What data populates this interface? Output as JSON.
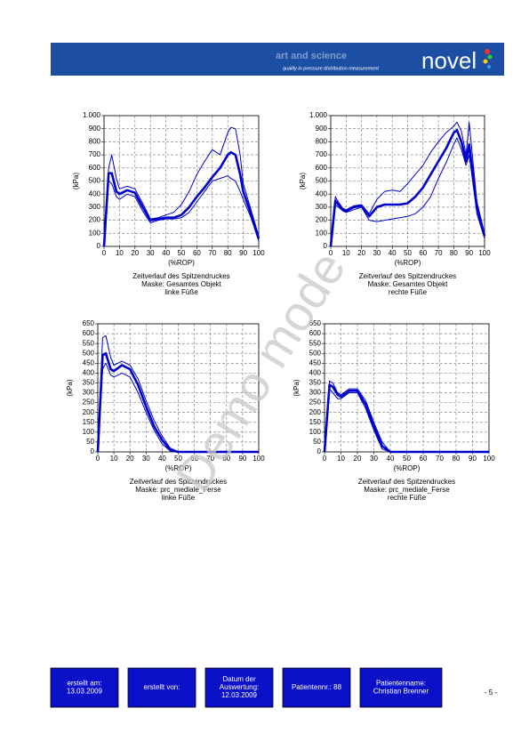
{
  "header": {
    "tagline": "art and science",
    "subtitle": "quality in pressure distribution measurement",
    "brand": "novel"
  },
  "watermark": "Demo mode",
  "chart_data": [
    {
      "type": "line",
      "xlabel": "(%ROP)",
      "ylabel": "(kPa)",
      "caption": [
        "Zeitverlauf des Spitzendruckes",
        "Maske: Gesamtes Objekt",
        "linke Füße"
      ],
      "x": [
        0,
        3,
        5,
        8,
        10,
        15,
        20,
        25,
        30,
        35,
        40,
        45,
        50,
        55,
        60,
        65,
        70,
        75,
        80,
        82,
        85,
        88,
        90,
        95,
        100
      ],
      "xlim": [
        0,
        100
      ],
      "xticks": [
        0,
        10,
        20,
        30,
        40,
        50,
        60,
        70,
        80,
        90,
        100
      ],
      "ylim": [
        0,
        1000
      ],
      "yticks": [
        0,
        100,
        200,
        300,
        400,
        500,
        600,
        700,
        800,
        900,
        {
          "value": 1000,
          "label": "1.000"
        }
      ],
      "grid": true,
      "series": [
        {
          "color": "#0000cc",
          "width": 1,
          "values": [
            0,
            600,
            700,
            520,
            440,
            460,
            440,
            330,
            210,
            220,
            240,
            260,
            320,
            420,
            550,
            650,
            740,
            700,
            870,
            910,
            900,
            700,
            480,
            280,
            80
          ]
        },
        {
          "color": "#0000cc",
          "width": 2.6,
          "values": [
            0,
            560,
            560,
            420,
            400,
            430,
            410,
            300,
            200,
            210,
            220,
            220,
            240,
            300,
            380,
            450,
            530,
            600,
            700,
            720,
            700,
            550,
            420,
            250,
            60
          ]
        },
        {
          "color": "#0000cc",
          "width": 1,
          "values": [
            0,
            500,
            480,
            380,
            360,
            400,
            380,
            270,
            180,
            200,
            210,
            210,
            220,
            260,
            340,
            420,
            500,
            520,
            540,
            520,
            500,
            420,
            360,
            220,
            40
          ]
        }
      ]
    },
    {
      "type": "line",
      "xlabel": "(%ROP)",
      "ylabel": "(kPa)",
      "caption": [
        "Zeitverlauf des Spitzendruckes",
        "Maske: Gesamtes Objekt",
        "rechte Füße"
      ],
      "x": [
        0,
        3,
        5,
        8,
        10,
        15,
        20,
        25,
        30,
        35,
        40,
        45,
        50,
        55,
        60,
        65,
        70,
        75,
        80,
        82,
        85,
        88,
        90,
        95,
        100
      ],
      "xlim": [
        0,
        100
      ],
      "xticks": [
        0,
        10,
        20,
        30,
        40,
        50,
        60,
        70,
        80,
        90,
        100
      ],
      "ylim": [
        0,
        1000
      ],
      "yticks": [
        0,
        100,
        200,
        300,
        400,
        500,
        600,
        700,
        800,
        900,
        {
          "value": 1000,
          "label": "1.000"
        }
      ],
      "grid": true,
      "series": [
        {
          "color": "#0000cc",
          "width": 1,
          "values": [
            0,
            380,
            340,
            290,
            280,
            310,
            320,
            250,
            360,
            420,
            430,
            420,
            480,
            550,
            620,
            720,
            800,
            870,
            920,
            950,
            880,
            700,
            950,
            340,
            100
          ]
        },
        {
          "color": "#0000cc",
          "width": 2.6,
          "values": [
            0,
            350,
            320,
            280,
            270,
            300,
            310,
            230,
            300,
            320,
            320,
            320,
            330,
            380,
            450,
            550,
            650,
            750,
            870,
            890,
            800,
            650,
            780,
            300,
            80
          ]
        },
        {
          "color": "#0000cc",
          "width": 1,
          "values": [
            0,
            320,
            300,
            270,
            260,
            280,
            300,
            200,
            190,
            200,
            210,
            220,
            230,
            250,
            300,
            380,
            520,
            640,
            780,
            830,
            740,
            620,
            700,
            250,
            60
          ]
        }
      ]
    },
    {
      "type": "line",
      "xlabel": "(%ROP)",
      "ylabel": "(kPa)",
      "caption": [
        "Zeitverlauf des Spitzendruckes",
        "Maske: prc_mediale_Ferse",
        "linke Füße"
      ],
      "x": [
        0,
        3,
        5,
        8,
        10,
        15,
        20,
        25,
        30,
        35,
        40,
        45,
        50,
        60,
        70,
        80,
        90,
        100
      ],
      "xlim": [
        0,
        100
      ],
      "xticks": [
        0,
        10,
        20,
        30,
        40,
        50,
        60,
        70,
        80,
        90,
        100
      ],
      "ylim": [
        0,
        650
      ],
      "yticks": [
        0,
        50,
        100,
        150,
        200,
        250,
        300,
        350,
        400,
        450,
        500,
        550,
        600,
        650
      ],
      "grid": true,
      "series": [
        {
          "color": "#0000cc",
          "width": 1,
          "values": [
            0,
            580,
            590,
            480,
            440,
            460,
            440,
            370,
            260,
            160,
            80,
            20,
            0,
            0,
            0,
            0,
            0,
            0
          ]
        },
        {
          "color": "#0000cc",
          "width": 2.6,
          "values": [
            0,
            490,
            500,
            420,
            410,
            440,
            420,
            340,
            230,
            130,
            60,
            10,
            0,
            0,
            0,
            0,
            0,
            0
          ]
        },
        {
          "color": "#0000cc",
          "width": 1,
          "values": [
            0,
            420,
            450,
            390,
            380,
            400,
            380,
            300,
            200,
            110,
            40,
            5,
            0,
            0,
            0,
            0,
            0,
            0
          ]
        }
      ]
    },
    {
      "type": "line",
      "xlabel": "(%ROP)",
      "ylabel": "(kPa)",
      "caption": [
        "Zeitverlauf des Spitzendruckes",
        "Maske: prc_mediale_Ferse",
        "rechte Füße"
      ],
      "x": [
        0,
        3,
        5,
        8,
        10,
        15,
        20,
        25,
        30,
        35,
        40,
        50,
        60,
        70,
        80,
        90,
        100
      ],
      "xlim": [
        0,
        100
      ],
      "xticks": [
        0,
        10,
        20,
        30,
        40,
        50,
        60,
        70,
        80,
        90,
        100
      ],
      "ylim": [
        0,
        650
      ],
      "yticks": [
        0,
        50,
        100,
        150,
        200,
        250,
        300,
        350,
        400,
        450,
        500,
        550,
        600,
        650
      ],
      "grid": true,
      "series": [
        {
          "color": "#0000cc",
          "width": 1,
          "values": [
            0,
            360,
            350,
            300,
            290,
            320,
            320,
            260,
            150,
            50,
            0,
            0,
            0,
            0,
            0,
            0,
            0
          ]
        },
        {
          "color": "#0000cc",
          "width": 2.6,
          "values": [
            0,
            340,
            330,
            290,
            280,
            310,
            310,
            240,
            130,
            30,
            0,
            0,
            0,
            0,
            0,
            0,
            0
          ]
        },
        {
          "color": "#0000cc",
          "width": 1,
          "values": [
            0,
            320,
            300,
            270,
            270,
            300,
            300,
            220,
            110,
            15,
            0,
            0,
            0,
            0,
            0,
            0,
            0
          ]
        }
      ]
    }
  ],
  "footer": {
    "boxes": [
      [
        "erstellt am:",
        "13.03.2009"
      ],
      [
        "erstellt von:"
      ],
      [
        "Datum der",
        "Auswertung:",
        "12.03.2009"
      ],
      [
        "Patientennr.: 88"
      ],
      [
        "Patientenname:",
        "Christian Brenner"
      ]
    ],
    "page": "- 5 -"
  }
}
